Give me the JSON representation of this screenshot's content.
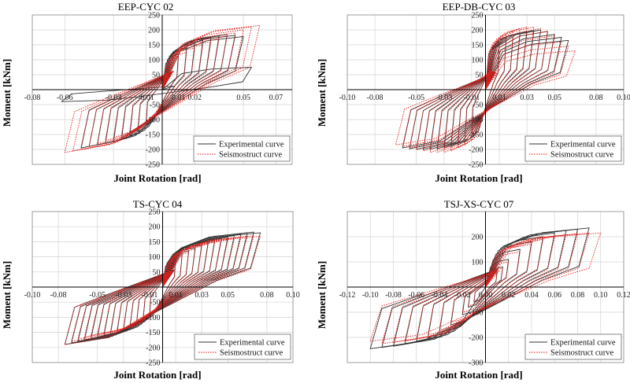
{
  "chart_data": [
    {
      "type": "line",
      "title": "EEP-CYC 02",
      "xlabel": "Joint Rotation [rad]",
      "ylabel": "Moment [kNm]",
      "xlim": [
        -0.08,
        0.08
      ],
      "ylim": [
        -250,
        250
      ],
      "xticks": [
        -0.08,
        -0.06,
        -0.03,
        -0.01,
        0.01,
        0.02,
        0.05,
        0.07
      ],
      "xtick_labels": [
        "-0.08",
        "-0.06",
        "-0.03",
        "-0.01",
        "0.01",
        "0.02",
        "0.05",
        "0.07"
      ],
      "yticks": [
        -250,
        -200,
        -150,
        -100,
        -50,
        0,
        50,
        100,
        150,
        200,
        250
      ],
      "ytick_labels": [
        "-250",
        "-200",
        "-150",
        "-100",
        "-50",
        "0",
        "50",
        "100",
        "150",
        "200",
        "250"
      ],
      "legend_position": "bottom-right",
      "grid": true,
      "series": [
        {
          "name": "Experimental curve",
          "style": "solid",
          "color": "#333333",
          "amplitudes": [
            0.01,
            0.015,
            0.02,
            0.025,
            0.03,
            0.035,
            0.04,
            0.045,
            0.05,
            0.055
          ],
          "neg_amplitudes": [
            0.01,
            0.015,
            0.02,
            0.025,
            0.03,
            0.035,
            0.04,
            0.045,
            0.05,
            0.062
          ],
          "peak_moment": [
            120,
            140,
            155,
            165,
            175,
            180,
            185,
            182,
            178,
            75
          ],
          "neg_peak_moment": [
            120,
            140,
            155,
            165,
            175,
            180,
            185,
            190,
            195,
            40
          ]
        },
        {
          "name": "Seismostruct curve",
          "style": "dotted",
          "color": "#e0201b",
          "amplitudes": [
            0.01,
            0.015,
            0.02,
            0.025,
            0.03,
            0.035,
            0.04,
            0.045,
            0.05,
            0.055,
            0.06
          ],
          "neg_amplitudes": [
            0.01,
            0.015,
            0.02,
            0.025,
            0.03,
            0.035,
            0.04,
            0.045,
            0.05,
            0.055,
            0.06
          ],
          "peak_moment": [
            110,
            125,
            140,
            150,
            160,
            170,
            180,
            190,
            200,
            210,
            215
          ],
          "neg_peak_moment": [
            110,
            125,
            140,
            150,
            160,
            170,
            180,
            190,
            200,
            205,
            210
          ]
        }
      ]
    },
    {
      "type": "line",
      "title": "EEP-DB-CYC 03",
      "xlabel": "Joint Rotation [rad]",
      "ylabel": "Moment [kNm]",
      "xlim": [
        -0.1,
        0.1
      ],
      "ylim": [
        -250,
        250
      ],
      "xticks": [
        -0.1,
        -0.08,
        -0.05,
        -0.03,
        -0.01,
        0.01,
        0.03,
        0.05,
        0.08,
        0.1
      ],
      "xtick_labels": [
        "-0.10",
        "-0.08",
        "-0.05",
        "-0.03",
        "-0.01",
        "0.01",
        "0.03",
        "0.05",
        "0.08",
        "0.10"
      ],
      "yticks": [
        -250,
        -200,
        -150,
        -100,
        -50,
        0,
        50,
        100,
        150,
        200,
        250
      ],
      "ytick_labels": [
        "-250",
        "-200",
        "-150",
        "-100",
        "-50",
        "0",
        "50",
        "100",
        "150",
        "200",
        "250"
      ],
      "legend_position": "bottom-right",
      "grid": true,
      "series": [
        {
          "name": "Experimental curve",
          "style": "solid",
          "color": "#333333",
          "amplitudes": [
            0.01,
            0.015,
            0.02,
            0.025,
            0.03,
            0.035,
            0.04,
            0.045,
            0.05,
            0.055,
            0.06
          ],
          "neg_amplitudes": [
            0.01,
            0.015,
            0.02,
            0.025,
            0.03,
            0.035,
            0.04,
            0.045,
            0.05,
            0.055,
            0.06
          ],
          "peak_moment": [
            160,
            175,
            185,
            190,
            195,
            198,
            200,
            195,
            185,
            175,
            165
          ],
          "neg_peak_moment": [
            160,
            175,
            185,
            190,
            195,
            198,
            200,
            200,
            200,
            198,
            195
          ]
        },
        {
          "name": "Seismostruct curve",
          "style": "dotted",
          "color": "#e0201b",
          "amplitudes": [
            0.01,
            0.015,
            0.02,
            0.025,
            0.03,
            0.035,
            0.04,
            0.045,
            0.05,
            0.055,
            0.06,
            0.065
          ],
          "neg_amplitudes": [
            0.01,
            0.015,
            0.02,
            0.025,
            0.03,
            0.035,
            0.04,
            0.045,
            0.05,
            0.055,
            0.06,
            0.065
          ],
          "peak_moment": [
            170,
            185,
            195,
            205,
            210,
            210,
            205,
            195,
            180,
            160,
            145,
            130
          ],
          "neg_peak_moment": [
            170,
            185,
            195,
            205,
            210,
            210,
            210,
            205,
            200,
            195,
            190,
            185
          ]
        }
      ]
    },
    {
      "type": "line",
      "title": "TS-CYC 04",
      "xlabel": "Joint Rotation [rad]",
      "ylabel": "Moment [kNm]",
      "xlim": [
        -0.1,
        0.1
      ],
      "ylim": [
        -250,
        250
      ],
      "xticks": [
        -0.1,
        -0.08,
        -0.05,
        -0.03,
        -0.01,
        0.01,
        0.03,
        0.05,
        0.08,
        0.1
      ],
      "xtick_labels": [
        "-0.10",
        "-0.08",
        "-0.05",
        "-0.03",
        "-0.01",
        "0.01",
        "0.03",
        "0.05",
        "0.08",
        "0.10"
      ],
      "yticks": [
        -250,
        -200,
        -150,
        -100,
        -50,
        0,
        50,
        100,
        150,
        200,
        250
      ],
      "ytick_labels": [
        "-250",
        "-200",
        "-150",
        "-100",
        "-50",
        "0",
        "50",
        "100",
        "150",
        "200",
        "250"
      ],
      "legend_position": "bottom-right",
      "grid": true,
      "series": [
        {
          "name": "Experimental curve",
          "style": "solid",
          "color": "#333333",
          "amplitudes": [
            0.01,
            0.015,
            0.02,
            0.025,
            0.03,
            0.035,
            0.04,
            0.045,
            0.05,
            0.055,
            0.06,
            0.065,
            0.07,
            0.075
          ],
          "neg_amplitudes": [
            0.01,
            0.015,
            0.02,
            0.025,
            0.03,
            0.035,
            0.04,
            0.045,
            0.05,
            0.055,
            0.06,
            0.065,
            0.07,
            0.075
          ],
          "peak_moment": [
            95,
            110,
            120,
            130,
            140,
            150,
            155,
            160,
            165,
            170,
            175,
            180,
            182,
            180
          ],
          "neg_peak_moment": [
            95,
            110,
            120,
            130,
            140,
            150,
            155,
            160,
            165,
            170,
            175,
            180,
            185,
            190
          ]
        },
        {
          "name": "Seismostruct curve",
          "style": "dotted",
          "color": "#e0201b",
          "amplitudes": [
            0.01,
            0.015,
            0.02,
            0.025,
            0.03,
            0.035,
            0.04,
            0.045,
            0.05,
            0.055,
            0.06,
            0.065,
            0.07,
            0.075
          ],
          "neg_amplitudes": [
            0.01,
            0.015,
            0.02,
            0.025,
            0.03,
            0.035,
            0.04,
            0.045,
            0.05,
            0.055,
            0.06,
            0.065,
            0.07,
            0.075
          ],
          "peak_moment": [
            90,
            105,
            115,
            125,
            135,
            142,
            148,
            152,
            156,
            160,
            164,
            168,
            170,
            168
          ],
          "neg_peak_moment": [
            90,
            105,
            115,
            125,
            135,
            142,
            148,
            152,
            156,
            160,
            165,
            172,
            180,
            190
          ]
        }
      ]
    },
    {
      "type": "line",
      "title": "TSJ-XS-CYC 07",
      "xlabel": "Joint Rotation [rad]",
      "ylabel": "Moment [kNm]",
      "xlim": [
        -0.12,
        0.12
      ],
      "ylim": [
        -300,
        300
      ],
      "xticks": [
        -0.12,
        -0.1,
        -0.08,
        -0.06,
        -0.04,
        -0.02,
        0.0,
        0.02,
        0.04,
        0.06,
        0.08,
        0.1,
        0.12
      ],
      "xtick_labels": [
        "-0.12",
        "-0.10",
        "-0.08",
        "-0.06",
        "-0.04",
        "-0.02",
        "0.00",
        "0.02",
        "0.04",
        "0.06",
        "0.08",
        "0.10",
        "0.12"
      ],
      "yticks": [
        -300,
        -200,
        -100,
        0,
        100,
        200
      ],
      "ytick_labels": [
        "-300",
        "-200",
        "-100",
        "0",
        "100",
        "200"
      ],
      "legend_position": "bottom-right",
      "grid": true,
      "series": [
        {
          "name": "Experimental curve",
          "style": "solid",
          "color": "#333333",
          "amplitudes": [
            0.01,
            0.015,
            0.02,
            0.03,
            0.04,
            0.05,
            0.06,
            0.07,
            0.08,
            0.09
          ],
          "neg_amplitudes": [
            0.01,
            0.015,
            0.02,
            0.03,
            0.04,
            0.05,
            0.06,
            0.07,
            0.08,
            0.09,
            0.1
          ],
          "peak_moment": [
            60,
            80,
            110,
            150,
            180,
            200,
            215,
            225,
            230,
            235
          ],
          "neg_peak_moment": [
            60,
            80,
            110,
            150,
            180,
            200,
            215,
            225,
            235,
            240,
            245
          ]
        },
        {
          "name": "Seismostruct curve",
          "style": "dotted",
          "color": "#e0201b",
          "amplitudes": [
            0.01,
            0.015,
            0.02,
            0.03,
            0.04,
            0.05,
            0.06,
            0.07,
            0.08,
            0.09,
            0.1
          ],
          "neg_amplitudes": [
            0.01,
            0.015,
            0.02,
            0.03,
            0.04,
            0.05,
            0.06,
            0.07,
            0.08,
            0.09
          ],
          "peak_moment": [
            55,
            75,
            100,
            140,
            170,
            190,
            200,
            208,
            212,
            215,
            215
          ],
          "neg_peak_moment": [
            55,
            75,
            100,
            140,
            170,
            190,
            205,
            215,
            220,
            225
          ]
        }
      ]
    }
  ]
}
